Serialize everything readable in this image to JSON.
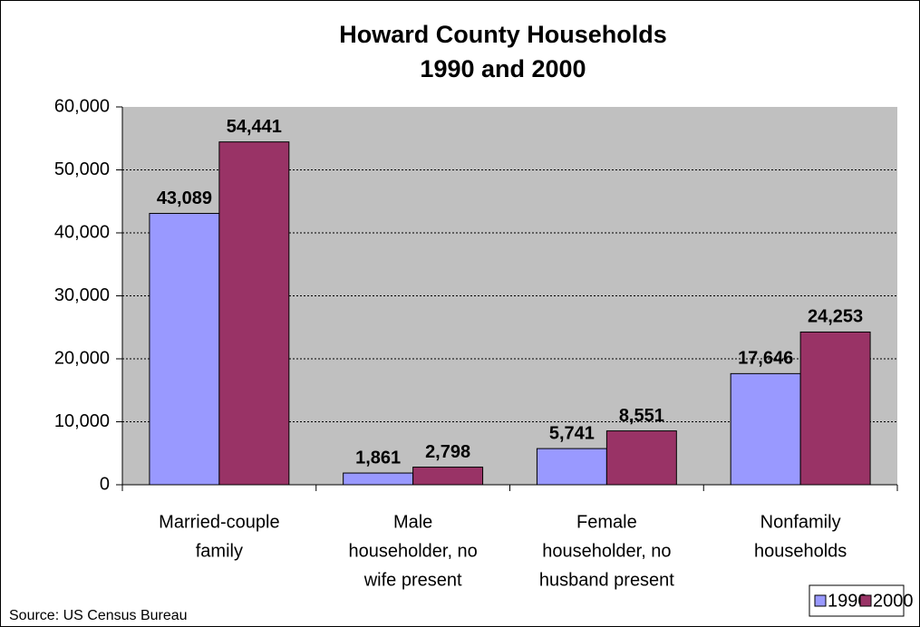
{
  "chart_data": {
    "type": "bar",
    "title": "Howard County Households",
    "subtitle": "1990 and 2000",
    "categories": [
      [
        "Married-couple",
        "family"
      ],
      [
        "Male",
        "householder, no",
        "wife present"
      ],
      [
        "Female",
        "householder, no",
        "husband present"
      ],
      [
        "Nonfamily",
        "households"
      ]
    ],
    "series": [
      {
        "name": "1990",
        "color": "#9999ff",
        "values": [
          43089,
          1861,
          5741,
          17646
        ],
        "value_labels": [
          "43,089",
          "1,861",
          "5,741",
          "17,646"
        ]
      },
      {
        "name": "2000",
        "color": "#993366",
        "values": [
          54441,
          2798,
          8551,
          24253
        ],
        "value_labels": [
          "54,441",
          "2,798",
          "8,551",
          "24,253"
        ]
      }
    ],
    "ylim": [
      0,
      60000
    ],
    "yticks": [
      0,
      {
        "value": 10000,
        "label": "10,000"
      },
      {
        "value": 20000,
        "label": "20,000"
      },
      {
        "value": 30000,
        "label": "30,000"
      },
      {
        "value": 40000,
        "label": "40,000"
      },
      {
        "value": 50000,
        "label": "50,000"
      },
      {
        "value": 60000,
        "label": "60,000"
      }
    ],
    "grid": true,
    "legend": "bottom-right",
    "annotation": "Source:  US Census Bureau"
  }
}
